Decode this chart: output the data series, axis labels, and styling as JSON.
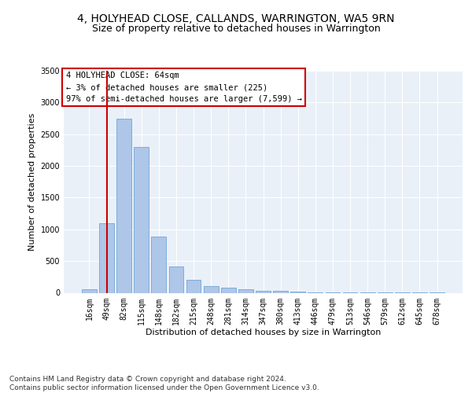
{
  "title": "4, HOLYHEAD CLOSE, CALLANDS, WARRINGTON, WA5 9RN",
  "subtitle": "Size of property relative to detached houses in Warrington",
  "xlabel": "Distribution of detached houses by size in Warrington",
  "ylabel": "Number of detached properties",
  "categories": [
    "16sqm",
    "49sqm",
    "82sqm",
    "115sqm",
    "148sqm",
    "182sqm",
    "215sqm",
    "248sqm",
    "281sqm",
    "314sqm",
    "347sqm",
    "380sqm",
    "413sqm",
    "446sqm",
    "479sqm",
    "513sqm",
    "546sqm",
    "579sqm",
    "612sqm",
    "645sqm",
    "678sqm"
  ],
  "values": [
    55,
    1100,
    2750,
    2300,
    880,
    420,
    200,
    105,
    80,
    55,
    35,
    25,
    20,
    12,
    8,
    5,
    3,
    2,
    2,
    1,
    1
  ],
  "bar_color": "#aec6e8",
  "bar_edgecolor": "#5b9bd5",
  "vline_x": 1,
  "vline_color": "#cc0000",
  "annotation_text": "4 HOLYHEAD CLOSE: 64sqm\n← 3% of detached houses are smaller (225)\n97% of semi-detached houses are larger (7,599) →",
  "annotation_box_edgecolor": "#cc0000",
  "annotation_box_facecolor": "#ffffff",
  "ylim": [
    0,
    3500
  ],
  "yticks": [
    0,
    500,
    1000,
    1500,
    2000,
    2500,
    3000,
    3500
  ],
  "bg_color": "#eaf0f8",
  "grid_color": "#ffffff",
  "footer": "Contains HM Land Registry data © Crown copyright and database right 2024.\nContains public sector information licensed under the Open Government Licence v3.0.",
  "title_fontsize": 10,
  "subtitle_fontsize": 9,
  "xlabel_fontsize": 8,
  "ylabel_fontsize": 8,
  "tick_fontsize": 7,
  "annotation_fontsize": 7.5,
  "footer_fontsize": 6.5
}
